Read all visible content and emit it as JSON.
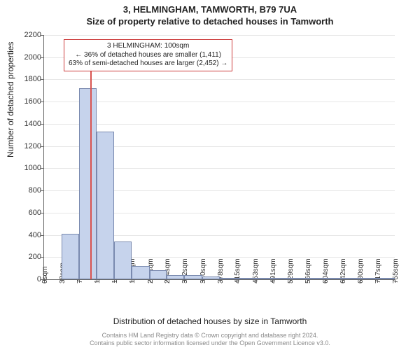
{
  "header": {
    "address_line": "3, HELMINGHAM, TAMWORTH, B79 7UA",
    "subtitle": "Size of property relative to detached houses in Tamworth"
  },
  "axes": {
    "y_label": "Number of detached properties",
    "x_label": "Distribution of detached houses by size in Tamworth",
    "y_min": 0,
    "y_max": 2200,
    "y_tick_step": 200,
    "x_ticks": [
      "0sqm",
      "38sqm",
      "76sqm",
      "113sqm",
      "151sqm",
      "189sqm",
      "227sqm",
      "264sqm",
      "302sqm",
      "340sqm",
      "378sqm",
      "415sqm",
      "453sqm",
      "491sqm",
      "529sqm",
      "566sqm",
      "604sqm",
      "642sqm",
      "680sqm",
      "717sqm",
      "755sqm"
    ]
  },
  "chart": {
    "type": "histogram",
    "bar_fill": "#c6d3ec",
    "bar_border": "#7a8aaf",
    "grid_color": "#e6e6e6",
    "background_color": "#ffffff",
    "bin_starts": [
      0,
      38,
      76,
      113,
      151,
      189,
      227,
      264,
      302,
      340,
      378,
      415,
      453,
      491,
      529,
      566,
      604,
      642,
      680,
      717
    ],
    "bin_end": 755,
    "counts": [
      0,
      410,
      1720,
      1330,
      340,
      120,
      80,
      40,
      35,
      25,
      15,
      15,
      12,
      10,
      8,
      5,
      4,
      3,
      2,
      2
    ],
    "marker": {
      "value_sqm": 100,
      "color": "#d9534f"
    }
  },
  "info_box": {
    "border_color": "#cc3b3b",
    "line1": "3 HELMINGHAM: 100sqm",
    "line2": "← 36% of detached houses are smaller (1,411)",
    "line3": "63% of semi-detached houses are larger (2,452) →"
  },
  "footer": {
    "line1": "Contains HM Land Registry data © Crown copyright and database right 2024.",
    "line2": "Contains public sector information licensed under the Open Government Licence v3.0."
  }
}
